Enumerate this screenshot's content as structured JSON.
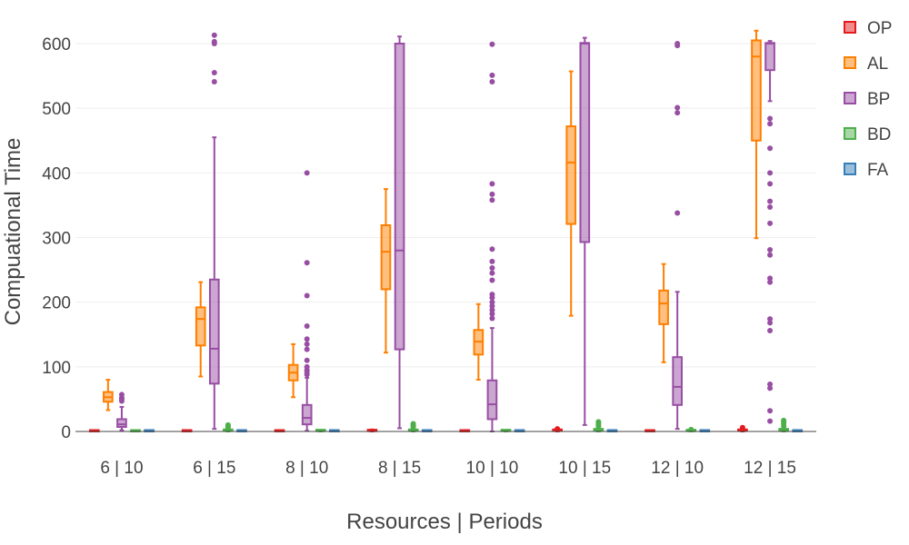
{
  "chart_data": {
    "type": "box",
    "xlabel": "Resources | Periods",
    "ylabel": "Compuational Time",
    "ylim": [
      -5,
      625
    ],
    "yticks": [
      0,
      100,
      200,
      300,
      400,
      500,
      600
    ],
    "grid": true,
    "legend_position": "right-top",
    "categories": [
      "6 | 10",
      "6 | 15",
      "8 | 10",
      "8 | 15",
      "10 | 10",
      "10 | 15",
      "12 | 10",
      "12 | 15"
    ],
    "series": [
      {
        "name": "OP",
        "color": "#e41a1c",
        "boxes": [
          {
            "min": 0,
            "q1": 0,
            "median": 0,
            "q3": 0.5,
            "max": 1,
            "outliers": []
          },
          {
            "min": 0,
            "q1": 0,
            "median": 0.5,
            "q3": 1,
            "max": 2,
            "outliers": []
          },
          {
            "min": 0,
            "q1": 0,
            "median": 0.5,
            "q3": 1,
            "max": 1,
            "outliers": []
          },
          {
            "min": 0,
            "q1": 0.5,
            "median": 1,
            "q3": 1.5,
            "max": 3,
            "outliers": []
          },
          {
            "min": 0,
            "q1": 0,
            "median": 0.5,
            "q3": 1,
            "max": 2,
            "outliers": []
          },
          {
            "min": 0,
            "q1": 1,
            "median": 1.5,
            "q3": 2,
            "max": 3,
            "outliers": [
              4
            ]
          },
          {
            "min": 0,
            "q1": 0,
            "median": 0.5,
            "q3": 1,
            "max": 2,
            "outliers": []
          },
          {
            "min": 0,
            "q1": 1,
            "median": 2,
            "q3": 3,
            "max": 4,
            "outliers": [
              6
            ]
          }
        ]
      },
      {
        "name": "AL",
        "color": "#ff7f00",
        "boxes": [
          {
            "min": 33,
            "q1": 46,
            "median": 53,
            "q3": 61,
            "max": 80,
            "outliers": []
          },
          {
            "min": 85,
            "q1": 133,
            "median": 174,
            "q3": 192,
            "max": 231,
            "outliers": []
          },
          {
            "min": 53,
            "q1": 79,
            "median": 91,
            "q3": 103,
            "max": 135,
            "outliers": []
          },
          {
            "min": 122,
            "q1": 220,
            "median": 278,
            "q3": 319,
            "max": 375,
            "outliers": []
          },
          {
            "min": 80,
            "q1": 119,
            "median": 139,
            "q3": 157,
            "max": 197,
            "outliers": []
          },
          {
            "min": 179,
            "q1": 321,
            "median": 416,
            "q3": 472,
            "max": 557,
            "outliers": []
          },
          {
            "min": 107,
            "q1": 166,
            "median": 198,
            "q3": 218,
            "max": 259,
            "outliers": []
          },
          {
            "min": 299,
            "q1": 450,
            "median": 580,
            "q3": 605,
            "max": 620,
            "outliers": []
          }
        ]
      },
      {
        "name": "BP",
        "color": "#984ea3",
        "boxes": [
          {
            "min": 2,
            "q1": 7,
            "median": 11,
            "q3": 19,
            "max": 38,
            "outliers": [
              47,
              50,
              52,
              57
            ]
          },
          {
            "min": 4,
            "q1": 74,
            "median": 128,
            "q3": 235,
            "max": 455,
            "outliers": [
              541,
              555,
              600,
              603,
              613
            ]
          },
          {
            "min": 1,
            "q1": 11,
            "median": 21,
            "q3": 41,
            "max": 83,
            "outliers": [
              88,
              92,
              95,
              100,
              110,
              127,
              135,
              143,
              163,
              210,
              261,
              400
            ]
          },
          {
            "min": 5,
            "q1": 127,
            "median": 280,
            "q3": 600,
            "max": 611,
            "outliers": []
          },
          {
            "min": 0,
            "q1": 19,
            "median": 42,
            "q3": 79,
            "max": 160,
            "outliers": [
              175,
              182,
              188,
              194,
              200,
              207,
              212,
              234,
              245,
              253,
              263,
              282,
              358,
              367,
              383,
              541,
              551,
              599
            ]
          },
          {
            "min": 10,
            "q1": 293,
            "median": 600,
            "q3": 601,
            "max": 609,
            "outliers": []
          },
          {
            "min": 4,
            "q1": 41,
            "median": 69,
            "q3": 115,
            "max": 216,
            "outliers": [
              338,
              493,
              501,
              597,
              600
            ]
          },
          {
            "min": 511,
            "q1": 559,
            "median": 600,
            "q3": 601,
            "max": 604,
            "outliers": [
              16,
              32,
              67,
              73,
              156,
              168,
              174,
              231,
              237,
              273,
              281,
              322,
              347,
              356,
              383,
              400,
              438,
              476,
              484
            ]
          }
        ]
      },
      {
        "name": "BD",
        "color": "#4daf4a",
        "boxes": [
          {
            "min": 0,
            "q1": 0,
            "median": 0.5,
            "q3": 1,
            "max": 1,
            "outliers": []
          },
          {
            "min": 0,
            "q1": 1,
            "median": 2,
            "q3": 3,
            "max": 5,
            "outliers": [
              6,
              8,
              10
            ]
          },
          {
            "min": 0,
            "q1": 0.5,
            "median": 1,
            "q3": 1.5,
            "max": 2,
            "outliers": []
          },
          {
            "min": 0,
            "q1": 1,
            "median": 2,
            "q3": 3,
            "max": 5,
            "outliers": [
              7,
              9,
              12
            ]
          },
          {
            "min": 0,
            "q1": 0.5,
            "median": 1,
            "q3": 1.5,
            "max": 2,
            "outliers": []
          },
          {
            "min": 0,
            "q1": 1,
            "median": 2,
            "q3": 4,
            "max": 6,
            "outliers": [
              8,
              10,
              13,
              15
            ]
          },
          {
            "min": 0,
            "q1": 0.5,
            "median": 1,
            "q3": 1.5,
            "max": 2,
            "outliers": [
              3
            ]
          },
          {
            "min": 0,
            "q1": 1,
            "median": 2,
            "q3": 4,
            "max": 6,
            "outliers": [
              8,
              12,
              15,
              17
            ]
          }
        ]
      },
      {
        "name": "FA",
        "color": "#377eb8",
        "boxes": [
          {
            "min": 0,
            "q1": 0,
            "median": 0,
            "q3": 0.5,
            "max": 1,
            "outliers": []
          },
          {
            "min": 0,
            "q1": 0,
            "median": 0,
            "q3": 0.5,
            "max": 1,
            "outliers": []
          },
          {
            "min": 0,
            "q1": 0,
            "median": 0,
            "q3": 0.5,
            "max": 1,
            "outliers": []
          },
          {
            "min": 0,
            "q1": 0,
            "median": 0,
            "q3": 0.5,
            "max": 1,
            "outliers": []
          },
          {
            "min": 0,
            "q1": 0,
            "median": 0,
            "q3": 0.5,
            "max": 1,
            "outliers": []
          },
          {
            "min": 0,
            "q1": 0,
            "median": 0,
            "q3": 0.5,
            "max": 1,
            "outliers": []
          },
          {
            "min": 0,
            "q1": 0,
            "median": 0,
            "q3": 0.5,
            "max": 1,
            "outliers": []
          },
          {
            "min": 0,
            "q1": 0,
            "median": 0,
            "q3": 0.5,
            "max": 1,
            "outliers": []
          }
        ]
      }
    ]
  }
}
